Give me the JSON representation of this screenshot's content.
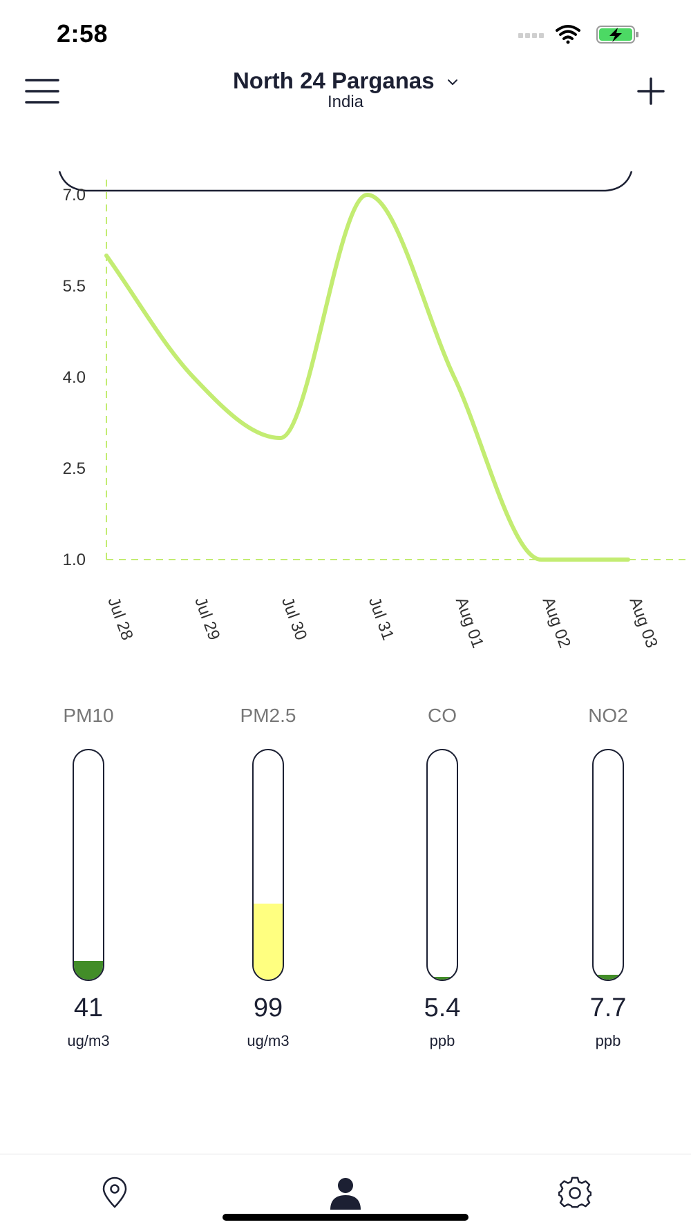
{
  "status_bar": {
    "time": "2:58",
    "icons": [
      "signal-icon",
      "wifi-icon",
      "battery-charging-icon"
    ],
    "battery_color": "#4cd964"
  },
  "header": {
    "location_title": "North 24 Parganas",
    "location_subtitle": "India",
    "menu_icon": "hamburger-menu-icon",
    "dropdown_icon": "chevron-down-icon",
    "add_icon": "plus-icon"
  },
  "chart_data": {
    "type": "line",
    "x": [
      "Jul 28",
      "Jul 29",
      "Jul 30",
      "Jul 31",
      "Aug 01",
      "Aug 02",
      "Aug 03"
    ],
    "series": [
      {
        "values": [
          6.0,
          4.0,
          3.0,
          7.0,
          4.0,
          1.0,
          1.0
        ],
        "color": "#c3ec72"
      }
    ],
    "y_ticks": [
      "7.0",
      "5.5",
      "4.0",
      "2.5",
      "1.0"
    ],
    "ylim": [
      1.0,
      7.0
    ],
    "axis_color": "#c3ec72",
    "grid": false,
    "title": "",
    "xlabel": "",
    "ylabel": ""
  },
  "gauges": [
    {
      "name": "PM10",
      "value": "41",
      "unit": "ug/m3",
      "level": 0.08,
      "color": "#428d28"
    },
    {
      "name": "PM2.5",
      "value": "99",
      "unit": "ug/m3",
      "level": 0.33,
      "color": "#ffff80"
    },
    {
      "name": "CO",
      "value": "5.4",
      "unit": "ppb",
      "level": 0.01,
      "color": "#428d28"
    },
    {
      "name": "NO2",
      "value": "7.7",
      "unit": "ppb",
      "level": 0.02,
      "color": "#428d28"
    }
  ],
  "bottom_nav": {
    "items": [
      {
        "icon": "location-pin-icon"
      },
      {
        "icon": "person-icon",
        "active": true
      },
      {
        "icon": "gear-icon"
      }
    ]
  }
}
